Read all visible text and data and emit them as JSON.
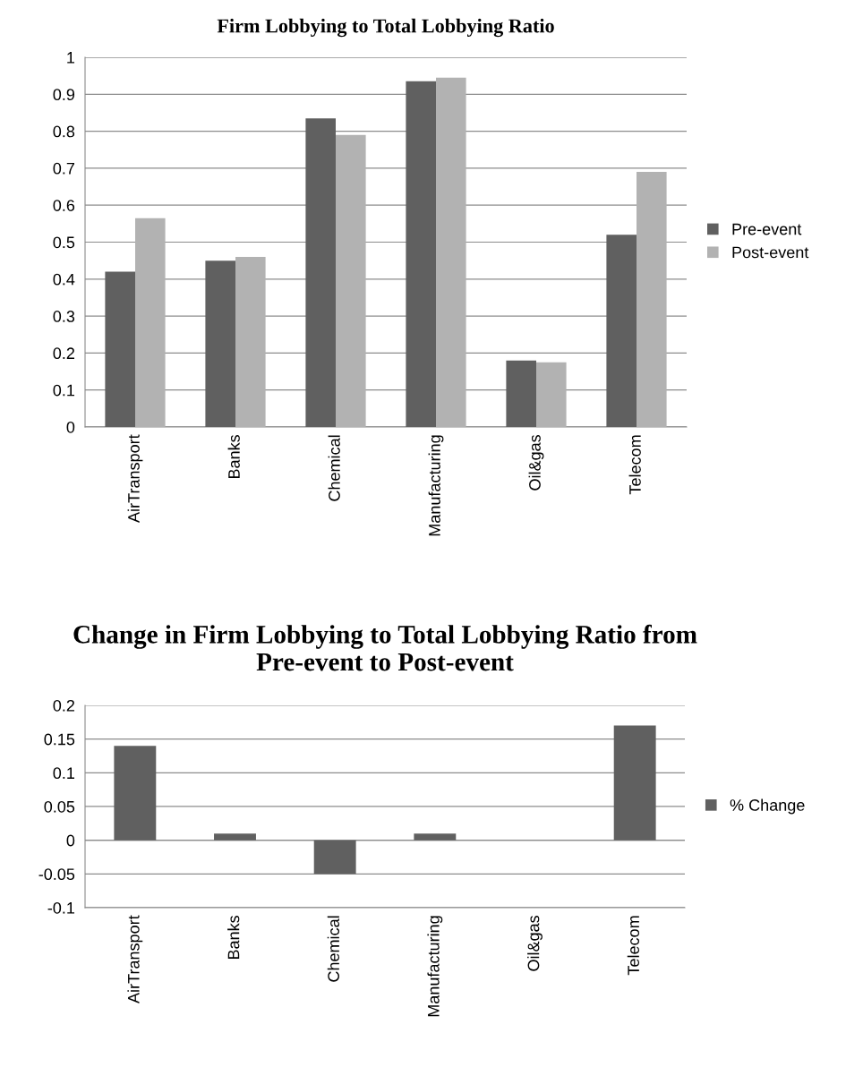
{
  "chart_data": [
    {
      "type": "bar",
      "title": "Firm Lobbying to Total Lobbying Ratio",
      "categories": [
        "AirTransport",
        "Banks",
        "Chemical",
        "Manufacturing",
        "Oil&gas",
        "Telecom"
      ],
      "series": [
        {
          "name": "Pre-event",
          "color": "#606060",
          "values": [
            0.42,
            0.45,
            0.835,
            0.935,
            0.18,
            0.52
          ]
        },
        {
          "name": "Post-event",
          "color": "#b2b2b2",
          "values": [
            0.565,
            0.46,
            0.79,
            0.945,
            0.175,
            0.69
          ]
        }
      ],
      "ylim": [
        0,
        1
      ],
      "yticks": [
        0,
        0.1,
        0.2,
        0.3,
        0.4,
        0.5,
        0.6,
        0.7,
        0.8,
        0.9,
        1
      ],
      "grid": "y",
      "legend": "right"
    },
    {
      "type": "bar",
      "title": "Change in Firm Lobbying to Total Lobbying Ratio from\nPre-event to Post-event",
      "categories": [
        "AirTransport",
        "Banks",
        "Chemical",
        "Manufacturing",
        "Oil&gas",
        "Telecom"
      ],
      "series": [
        {
          "name": "% Change",
          "color": "#606060",
          "values": [
            0.14,
            0.01,
            -0.05,
            0.01,
            0,
            0.17
          ]
        }
      ],
      "ylim": [
        -0.1,
        0.2
      ],
      "yticks": [
        {
          "value": -0.1,
          "label": "-0.1"
        },
        {
          "value": -0.05,
          "label": "-0.05"
        },
        0,
        0.05,
        0.1,
        0.15,
        0.2
      ],
      "grid": "y",
      "legend": "right"
    }
  ]
}
